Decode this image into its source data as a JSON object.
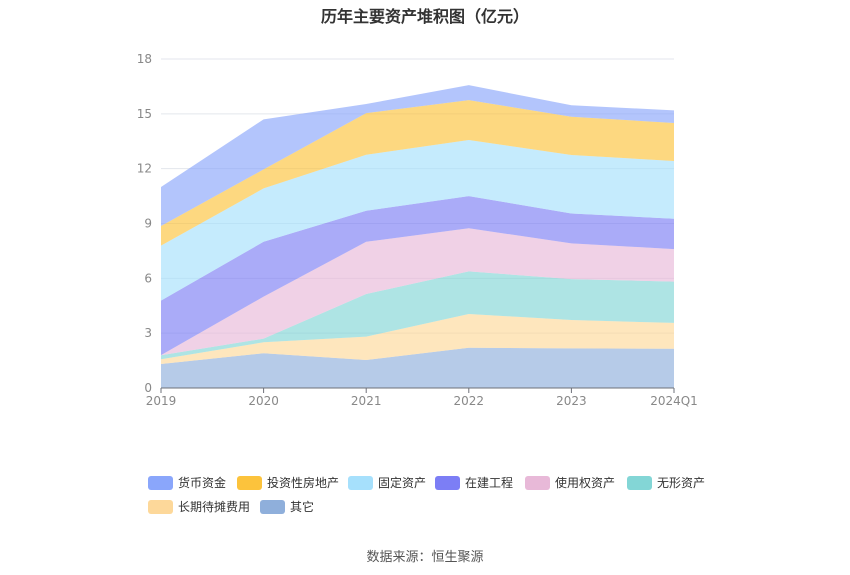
{
  "chart_data": {
    "type": "area",
    "stacked": true,
    "title": "历年主要资产堆积图（亿元）",
    "categories": [
      "2019",
      "2020",
      "2021",
      "2022",
      "2023",
      "2024Q1"
    ],
    "ylim": [
      0,
      18
    ],
    "yticks": [
      0,
      3,
      6,
      9,
      12,
      15,
      18
    ],
    "grid": true,
    "legend_position": "bottom",
    "series": [
      {
        "name": "其它",
        "color": "#8fafdb",
        "values": [
          1.31,
          1.9,
          1.53,
          2.2,
          2.17,
          2.15
        ]
      },
      {
        "name": "长期待摊费用",
        "color": "#fdd89a",
        "values": [
          0.26,
          0.6,
          1.28,
          1.85,
          1.55,
          1.41
        ]
      },
      {
        "name": "无形资产",
        "color": "#83d6d6",
        "values": [
          0.22,
          0.2,
          2.33,
          2.33,
          2.24,
          2.26
        ]
      },
      {
        "name": "使用权资产",
        "color": "#e8b9d8",
        "values": [
          0.01,
          2.3,
          2.86,
          2.36,
          1.95,
          1.78
        ]
      },
      {
        "name": "在建工程",
        "color": "#7c7ef5",
        "values": [
          2.98,
          3.0,
          1.7,
          1.76,
          1.64,
          1.66
        ]
      },
      {
        "name": "固定资产",
        "color": "#a6e0fc",
        "values": [
          3.01,
          2.92,
          3.06,
          3.07,
          3.2,
          3.16
        ]
      },
      {
        "name": "投资性房地产",
        "color": "#fcc33c",
        "values": [
          1.07,
          1.04,
          2.28,
          2.18,
          2.09,
          2.08
        ]
      },
      {
        "name": "货币资金",
        "color": "#8aa6fb",
        "values": [
          2.14,
          2.74,
          0.5,
          0.82,
          0.63,
          0.69
        ]
      }
    ],
    "legend_order": [
      "货币资金",
      "投资性房地产",
      "固定资产",
      "在建工程",
      "使用权资产",
      "无形资产",
      "长期待摊费用",
      "其它"
    ]
  },
  "source": "数据来源：恒生聚源"
}
